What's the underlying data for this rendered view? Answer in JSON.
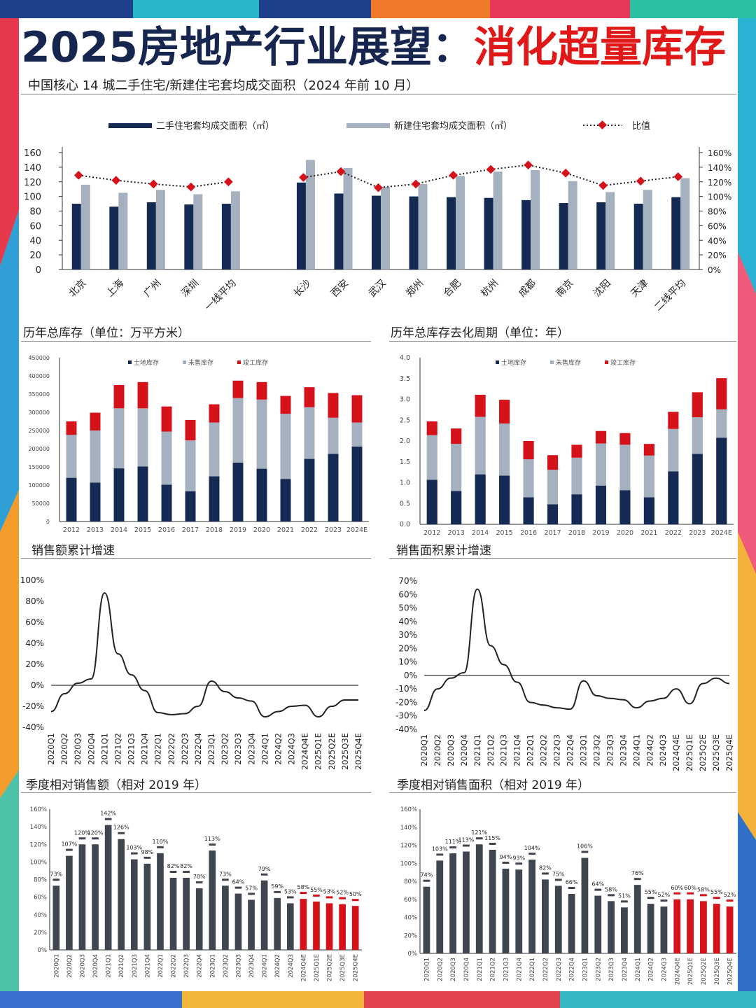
{
  "title": {
    "main": "2025房地产行业展望：",
    "highlight": "消化超量库存"
  },
  "subtitle": "中国核心 14 城二手住宅/新建住宅套均成交面积（2024 年前 10 月）",
  "colors": {
    "navy": "#152a52",
    "gray": "#a6b1bf",
    "red": "#d5121a",
    "dark": "#3f4650",
    "line": "#222222"
  },
  "chart_data": [
    {
      "type": "bar",
      "id": "area",
      "title": "中国核心 14 城二手住宅/新建住宅套均成交面积（2024 年前 10 月）",
      "legend": [
        "二手住宅套均成交面积（㎡）",
        "新建住宅套均成交面积（㎡）",
        "比值"
      ],
      "categories": [
        "北京",
        "上海",
        "广州",
        "深圳",
        "一线平均",
        "",
        "长沙",
        "西安",
        "武汉",
        "郑州",
        "合肥",
        "杭州",
        "成都",
        "南京",
        "沈阳",
        "天津",
        "二线平均"
      ],
      "series": [
        {
          "name": "二手住宅套均成交面积（㎡）",
          "values": [
            90,
            86,
            92,
            89,
            90,
            null,
            119,
            104,
            101,
            100,
            99,
            98,
            95,
            91,
            92,
            90,
            99
          ]
        },
        {
          "name": "新建住宅套均成交面积（㎡）",
          "values": [
            116,
            105,
            109,
            103,
            107,
            null,
            150,
            139,
            113,
            117,
            128,
            134,
            136,
            121,
            106,
            109,
            125
          ]
        },
        {
          "name": "比值",
          "axis": "right",
          "values": [
            129,
            122,
            117,
            113,
            120,
            null,
            126,
            134,
            112,
            117,
            129,
            137,
            143,
            132,
            115,
            121,
            127
          ]
        }
      ],
      "yticks_left": [
        "0",
        "20",
        "40",
        "60",
        "80",
        "100",
        "120",
        "140",
        "160"
      ],
      "yticks_right": [
        "0%",
        "20%",
        "40%",
        "60%",
        "80%",
        "100%",
        "120%",
        "140%",
        "160%"
      ],
      "ylim": [
        0,
        160
      ]
    },
    {
      "type": "bar",
      "id": "inv",
      "title": "历年总库存（单位：万平方米）",
      "legend": [
        "土地库存",
        "未售库存",
        "竣工库存"
      ],
      "categories": [
        "2012",
        "2013",
        "2014",
        "2015",
        "2016",
        "2017",
        "2018",
        "2019",
        "2020",
        "2021",
        "2022",
        "2023",
        "2024E"
      ],
      "series": [
        {
          "name": "土地库存",
          "values": [
            120000,
            107000,
            146000,
            151000,
            101000,
            83000,
            124000,
            162000,
            145000,
            117000,
            172000,
            186000,
            206000
          ]
        },
        {
          "name": "未售库存",
          "values": [
            118000,
            143000,
            165000,
            160000,
            146000,
            140000,
            148000,
            177000,
            190000,
            179000,
            142000,
            99000,
            66000
          ]
        },
        {
          "name": "竣工库存",
          "values": [
            37000,
            49000,
            64000,
            72000,
            69000,
            56000,
            50000,
            48000,
            48000,
            49000,
            55000,
            68000,
            75000
          ]
        }
      ],
      "yticks": [
        "0",
        "50000",
        "100000",
        "150000",
        "200000",
        "250000",
        "300000",
        "350000",
        "400000",
        "450000"
      ],
      "ylim": [
        0,
        450000
      ]
    },
    {
      "type": "bar",
      "id": "cycle",
      "title": "历年总库存去化周期（单位：年）",
      "legend": [
        "土地库存",
        "未售库存",
        "竣工库存"
      ],
      "categories": [
        "2012",
        "2013",
        "2014",
        "2015",
        "2016",
        "2017",
        "2018",
        "2019",
        "2020",
        "2021",
        "2022",
        "2023",
        "2024E"
      ],
      "series": [
        {
          "name": "土地库存",
          "values": [
            1.07,
            0.8,
            1.2,
            1.17,
            0.65,
            0.48,
            0.72,
            0.93,
            0.82,
            0.65,
            1.27,
            1.69,
            2.08
          ]
        },
        {
          "name": "未售库存",
          "values": [
            1.07,
            1.13,
            1.38,
            1.25,
            0.91,
            0.83,
            0.88,
            1.01,
            1.09,
            1.0,
            1.02,
            0.88,
            0.68
          ]
        },
        {
          "name": "竣工库存",
          "values": [
            0.33,
            0.37,
            0.53,
            0.57,
            0.44,
            0.35,
            0.31,
            0.3,
            0.28,
            0.28,
            0.41,
            0.6,
            0.75
          ]
        }
      ],
      "yticks": [
        "0.0",
        "0.5",
        "1.0",
        "1.5",
        "2.0",
        "2.5",
        "3.0",
        "3.5",
        "4.0"
      ],
      "ylim": [
        0,
        4
      ]
    },
    {
      "type": "line",
      "id": "salesAmt",
      "title": "销售额累计增速",
      "x": [
        "2020Q1",
        "2020Q2",
        "2020Q3",
        "2020Q4",
        "2021Q1",
        "2021Q2",
        "2021Q3",
        "2021Q4",
        "2022Q1",
        "2022Q2",
        "2022Q3",
        "2022Q4",
        "2023Q1",
        "2023Q2",
        "2023Q3",
        "2023Q4",
        "2024Q1",
        "2024Q2",
        "2024Q3",
        "2024Q4E",
        "2025Q1E",
        "2025Q2E",
        "2025Q3E",
        "2025Q4E"
      ],
      "values": [
        -25,
        -8,
        2,
        6,
        88,
        30,
        10,
        -5,
        -26,
        -28,
        -27,
        -20,
        4,
        -6,
        -12,
        -15,
        -30,
        -25,
        -20,
        -19,
        -30,
        -20,
        -14,
        -14
      ],
      "yticks": [
        "-40%",
        "-20%",
        "0%",
        "20%",
        "40%",
        "60%",
        "80%",
        "100%"
      ],
      "ylim": [
        -40,
        100
      ]
    },
    {
      "type": "line",
      "id": "salesArea",
      "title": "销售面积累计增速",
      "x": [
        "2020Q1",
        "2020Q2",
        "2020Q3",
        "2020Q4",
        "2021Q1",
        "2021Q2",
        "2021Q3",
        "2021Q4",
        "2022Q1",
        "2022Q2",
        "2022Q3",
        "2022Q4",
        "2023Q1",
        "2023Q2",
        "2023Q3",
        "2023Q4",
        "2024Q1",
        "2024Q2",
        "2024Q3",
        "2024Q4E",
        "2025Q1E",
        "2025Q2E",
        "2025Q3E",
        "2025Q4E"
      ],
      "values": [
        -26,
        -10,
        -2,
        2,
        64,
        22,
        8,
        -5,
        -20,
        -22,
        -24,
        -25,
        -4,
        -15,
        -17,
        -18,
        -24,
        -19,
        -17,
        -10,
        -21,
        -6,
        -2,
        -6
      ],
      "yticks": [
        "-40%",
        "-30%",
        "-20%",
        "-10%",
        "0%",
        "10%",
        "20%",
        "30%",
        "40%",
        "50%",
        "60%",
        "70%"
      ],
      "ylim": [
        -40,
        70
      ]
    },
    {
      "type": "bar",
      "id": "relAmt",
      "title": "季度相对销售额（相对 2019 年）",
      "categories": [
        "2020Q1",
        "2020Q2",
        "2020Q3",
        "2020Q4",
        "2021Q1",
        "2021Q2",
        "2021Q3",
        "2021Q4",
        "2022Q1",
        "2022Q2",
        "2022Q3",
        "2022Q4",
        "2023Q1",
        "2023Q2",
        "2023Q3",
        "2023Q4",
        "2024Q1",
        "2024Q2",
        "2024Q3",
        "2024Q4E",
        "2025Q1E",
        "2025Q2E",
        "2025Q3E",
        "2025Q4E"
      ],
      "values": [
        73,
        107,
        120,
        120,
        142,
        126,
        103,
        98,
        110,
        82,
        82,
        70,
        113,
        73,
        64,
        57,
        79,
        59,
        53,
        58,
        55,
        53,
        52,
        50
      ],
      "labels": [
        "73%",
        "107%",
        "120%",
        "120%",
        "142%",
        "126%",
        "103%",
        "98%",
        "110%",
        "82%",
        "82%",
        "70%",
        "113%",
        "73%",
        "64%",
        "57%",
        "79%",
        "59%",
        "53%",
        "58%",
        "55%",
        "53%",
        "52%",
        "50%"
      ],
      "yticks": [
        "0%",
        "20%",
        "40%",
        "60%",
        "80%",
        "100%",
        "120%",
        "140%",
        "160%"
      ],
      "ylim": [
        0,
        160
      ]
    },
    {
      "type": "bar",
      "id": "relArea",
      "title": "季度相对销售面积（相对 2019 年）",
      "categories": [
        "2020Q1",
        "2020Q2",
        "2020Q3",
        "2020Q4",
        "2021Q1",
        "2021Q2",
        "2021Q3",
        "2021Q4",
        "2022Q1",
        "2022Q2",
        "2022Q3",
        "2022Q4",
        "2023Q1",
        "2023Q2",
        "2023Q3",
        "2023Q4",
        "2024Q1",
        "2024Q2",
        "2024Q3",
        "2024Q4E",
        "2025Q1E",
        "2025Q2E",
        "2025Q3E",
        "2025Q4E"
      ],
      "values": [
        74,
        103,
        111,
        113,
        121,
        115,
        94,
        93,
        104,
        82,
        75,
        66,
        106,
        64,
        58,
        51,
        76,
        55,
        52,
        60,
        60,
        58,
        55,
        52
      ],
      "labels": [
        "74%",
        "103%",
        "111%",
        "113%",
        "121%",
        "115%",
        "94%",
        "93%",
        "104%",
        "82%",
        "75%",
        "66%",
        "106%",
        "64%",
        "58%",
        "51%",
        "76%",
        "55%",
        "52%",
        "60%",
        "60%",
        "58%",
        "55%",
        "52%"
      ],
      "yticks": [
        "0%",
        "20%",
        "40%",
        "60%",
        "80%",
        "100%",
        "120%",
        "140%",
        "160%"
      ],
      "ylim": [
        0,
        160
      ]
    }
  ]
}
